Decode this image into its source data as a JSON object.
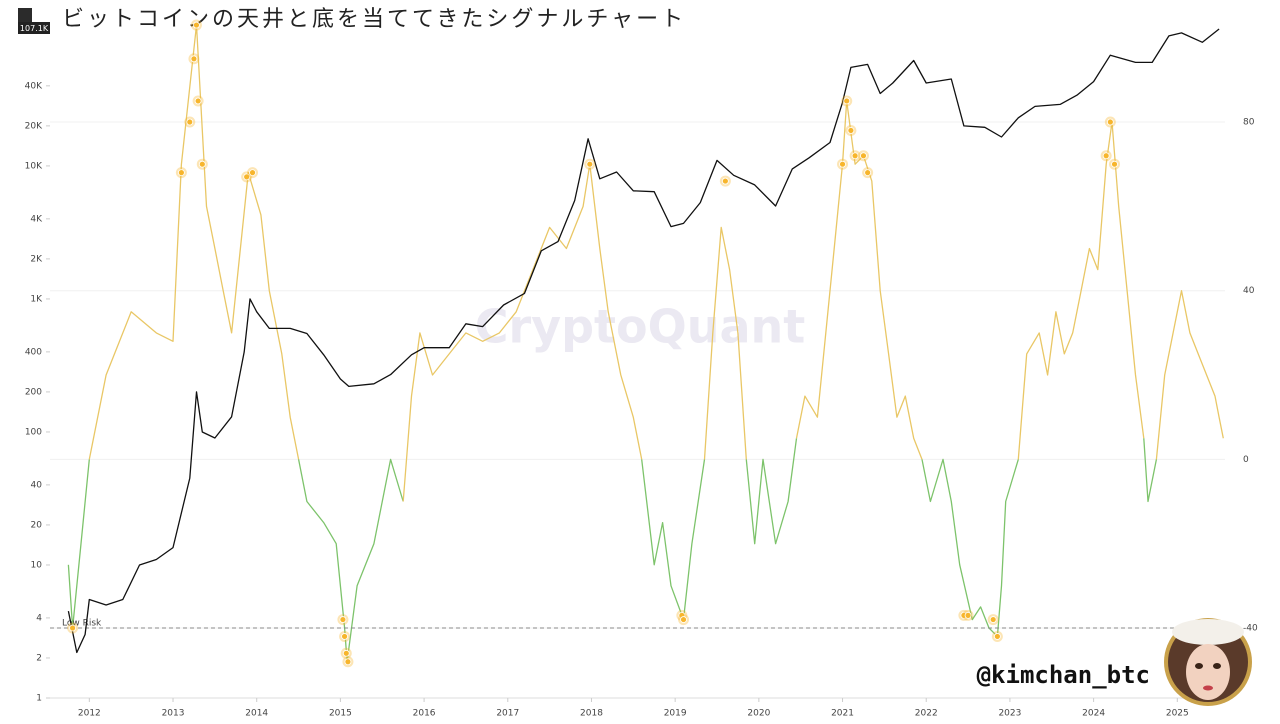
{
  "chart_data": {
    "type": "line",
    "title": "ビットコインの天井と底を当ててきたシグナルチャート",
    "price_label": "107.1K",
    "watermark": "CryptoQuant",
    "handle": "@kimchan_btc",
    "low_risk": {
      "label": "Low Risk",
      "value": -40
    },
    "xlim": [
      2011.53,
      2025.57
    ],
    "xticks": [
      2012,
      2013,
      2014,
      2015,
      2016,
      2017,
      2018,
      2019,
      2020,
      2021,
      2022,
      2023,
      2024,
      2025
    ],
    "ylim": [
      1,
      125000
    ],
    "log_y": true,
    "yticks": [
      1,
      2,
      4,
      10,
      20,
      40,
      100,
      200,
      400,
      {
        "value": 1000,
        "label": "1K"
      },
      {
        "value": 2000,
        "label": "2K"
      },
      {
        "value": 4000,
        "label": "4K"
      },
      {
        "value": 10000,
        "label": "10K"
      },
      {
        "value": 20000,
        "label": "20K"
      },
      {
        "value": 40000,
        "label": "40K"
      }
    ],
    "y2lim": [
      -56.6,
      104.2
    ],
    "y2ticks": [
      -40,
      0,
      40,
      80
    ],
    "grid": true,
    "series": [
      {
        "axis": "y2",
        "color": "#e9c766",
        "negative_color": "#7dc36b",
        "x": [
          2011.75,
          2011.8,
          2011.9,
          2012.0,
          2012.2,
          2012.5,
          2012.8,
          2013.0,
          2013.1,
          2013.28,
          2013.4,
          2013.5,
          2013.6,
          2013.7,
          2013.9,
          2014.05,
          2014.15,
          2014.3,
          2014.4,
          2014.5,
          2014.6,
          2014.8,
          2014.95,
          2015.05,
          2015.08,
          2015.2,
          2015.4,
          2015.6,
          2015.75,
          2015.85,
          2015.95,
          2016.1,
          2016.3,
          2016.5,
          2016.7,
          2016.9,
          2017.1,
          2017.3,
          2017.5,
          2017.7,
          2017.9,
          2017.98,
          2018.1,
          2018.2,
          2018.35,
          2018.5,
          2018.6,
          2018.75,
          2018.85,
          2018.95,
          2019.1,
          2019.2,
          2019.35,
          2019.45,
          2019.55,
          2019.65,
          2019.75,
          2019.85,
          2019.95,
          2020.05,
          2020.2,
          2020.35,
          2020.45,
          2020.55,
          2020.7,
          2020.8,
          2020.9,
          2021.0,
          2021.05,
          2021.15,
          2021.25,
          2021.35,
          2021.45,
          2021.55,
          2021.65,
          2021.75,
          2021.85,
          2021.95,
          2022.05,
          2022.2,
          2022.3,
          2022.4,
          2022.55,
          2022.65,
          2022.75,
          2022.85,
          2022.9,
          2022.95,
          2023.1,
          2023.2,
          2023.35,
          2023.45,
          2023.55,
          2023.65,
          2023.75,
          2023.85,
          2023.95,
          2024.05,
          2024.15,
          2024.22,
          2024.3,
          2024.4,
          2024.5,
          2024.6,
          2024.65,
          2024.75,
          2024.85,
          2024.95,
          2025.05,
          2025.15,
          2025.25,
          2025.35,
          2025.45,
          2025.5,
          2025.55
        ],
        "values": [
          -25,
          -40,
          -20,
          0,
          20,
          35,
          30,
          28,
          70,
          103,
          60,
          50,
          40,
          30,
          68,
          58,
          40,
          25,
          10,
          0,
          -10,
          -15,
          -20,
          -40,
          -48,
          -30,
          -20,
          0,
          -10,
          15,
          30,
          20,
          25,
          30,
          28,
          30,
          35,
          45,
          55,
          50,
          60,
          70,
          50,
          35,
          20,
          10,
          0,
          -25,
          -15,
          -30,
          -38,
          -20,
          0,
          30,
          55,
          45,
          30,
          0,
          -20,
          0,
          -20,
          -10,
          5,
          15,
          10,
          30,
          50,
          70,
          85,
          70,
          72,
          66,
          40,
          25,
          10,
          15,
          5,
          0,
          -10,
          0,
          -10,
          -25,
          -38,
          -35,
          -40,
          -42,
          -30,
          -10,
          0,
          25,
          30,
          20,
          35,
          25,
          30,
          40,
          50,
          45,
          70,
          80,
          60,
          40,
          20,
          5,
          -10,
          0,
          20,
          30,
          40,
          30,
          25,
          20,
          15,
          10,
          5
        ]
      },
      {
        "color": "#111111",
        "x": [
          2011.75,
          2011.85,
          2011.95,
          2012.0,
          2012.2,
          2012.4,
          2012.6,
          2012.8,
          2013.0,
          2013.2,
          2013.28,
          2013.35,
          2013.5,
          2013.7,
          2013.85,
          2013.92,
          2014.0,
          2014.15,
          2014.4,
          2014.6,
          2014.8,
          2015.0,
          2015.1,
          2015.4,
          2015.6,
          2015.85,
          2016.0,
          2016.3,
          2016.5,
          2016.7,
          2016.95,
          2017.2,
          2017.4,
          2017.6,
          2017.8,
          2017.96,
          2018.1,
          2018.3,
          2018.5,
          2018.75,
          2018.95,
          2019.1,
          2019.3,
          2019.5,
          2019.7,
          2019.95,
          2020.2,
          2020.4,
          2020.6,
          2020.85,
          2021.0,
          2021.1,
          2021.3,
          2021.45,
          2021.6,
          2021.85,
          2022.0,
          2022.3,
          2022.45,
          2022.7,
          2022.9,
          2023.1,
          2023.3,
          2023.6,
          2023.8,
          2024.0,
          2024.2,
          2024.5,
          2024.7,
          2024.9,
          2025.05,
          2025.3,
          2025.5
        ],
        "values": [
          4.5,
          2.2,
          3.0,
          5.5,
          5,
          5.5,
          10,
          11,
          13.5,
          45,
          200,
          100,
          90,
          130,
          400,
          1000,
          800,
          600,
          600,
          550,
          380,
          250,
          220,
          230,
          270,
          380,
          430,
          430,
          650,
          620,
          900,
          1100,
          2300,
          2700,
          5500,
          16000,
          8000,
          9000,
          6500,
          6400,
          3500,
          3700,
          5300,
          11000,
          8500,
          7200,
          5000,
          9500,
          11500,
          15000,
          30000,
          55000,
          58000,
          35000,
          42000,
          62000,
          42000,
          45000,
          20000,
          19500,
          16500,
          23000,
          28000,
          29000,
          34000,
          43000,
          68000,
          60000,
          60000,
          95000,
          100000,
          85000,
          107000
        ]
      },
      {
        "type": "scatter",
        "axis": "y2",
        "color": "#f7b52c",
        "x": [
          2011.8,
          2013.1,
          2013.2,
          2013.25,
          2013.28,
          2013.3,
          2013.35,
          2013.88,
          2013.95,
          2015.03,
          2015.05,
          2015.07,
          2015.09,
          2017.98,
          2019.08,
          2019.1,
          2019.6,
          2021.0,
          2021.05,
          2021.1,
          2021.15,
          2021.25,
          2021.3,
          2022.45,
          2022.5,
          2022.8,
          2022.85,
          2024.15,
          2024.2,
          2024.25
        ],
        "values": [
          -40,
          68,
          80,
          95,
          103,
          85,
          70,
          67,
          68,
          -38,
          -42,
          -46,
          -48,
          70,
          -37,
          -38,
          66,
          70,
          85,
          78,
          72,
          72,
          68,
          -37,
          -37,
          -38,
          -42,
          72,
          80,
          70
        ]
      }
    ]
  }
}
